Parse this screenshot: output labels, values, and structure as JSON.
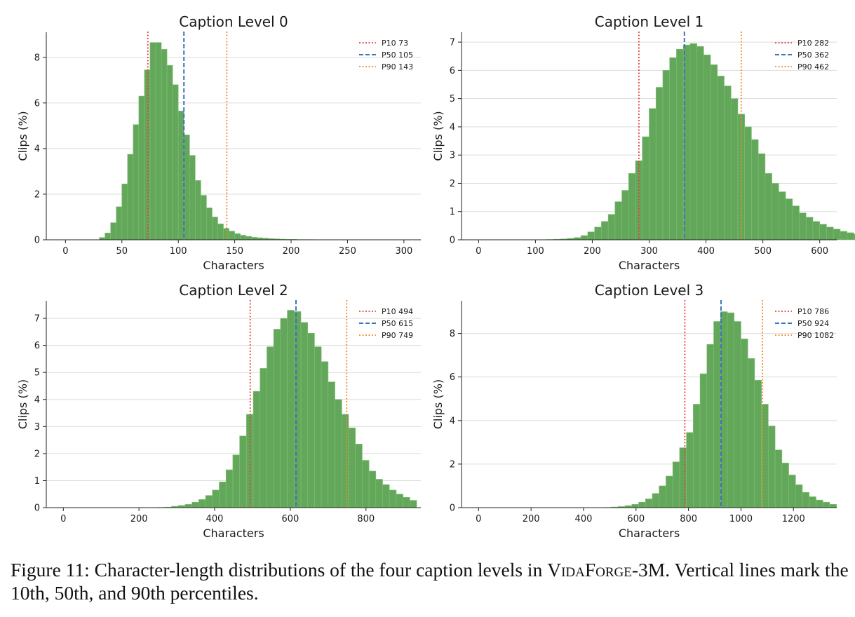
{
  "chart_data": [
    {
      "type": "bar",
      "title": "Caption Level 0",
      "xlabel": "Characters",
      "ylabel": "Clips (%)",
      "xlim": [
        -17,
        315
      ],
      "ylim": [
        0,
        9.1
      ],
      "xticks": [
        0,
        50,
        100,
        150,
        200,
        250,
        300
      ],
      "yticks": [
        0,
        2,
        4,
        6,
        8
      ],
      "bin_start": 30,
      "bin_width": 5,
      "values": [
        0.1,
        0.3,
        0.75,
        1.45,
        2.45,
        3.75,
        5.05,
        6.3,
        7.45,
        8.65,
        8.65,
        8.35,
        7.65,
        6.8,
        5.65,
        4.6,
        3.7,
        2.6,
        1.95,
        1.4,
        1.0,
        0.7,
        0.5,
        0.38,
        0.27,
        0.2,
        0.15,
        0.11,
        0.09,
        0.07,
        0.05,
        0.04,
        0.03,
        0.02,
        0.02,
        0.01,
        0.01,
        0.01
      ],
      "percentiles": [
        {
          "label": "P10 73",
          "value": 73,
          "color": "#e8413c",
          "style": "dotted"
        },
        {
          "label": "P50 105",
          "value": 105,
          "color": "#3f74b8",
          "style": "dashed"
        },
        {
          "label": "P90 143",
          "value": 143,
          "color": "#f08a24",
          "style": "dotted"
        }
      ],
      "bar_color": "#63a85a",
      "grid": "horizontal",
      "legend": "top-right"
    },
    {
      "type": "bar",
      "title": "Caption Level 1",
      "xlabel": "Characters",
      "ylabel": "Clips (%)",
      "xlim": [
        -30,
        630
      ],
      "ylim": [
        0,
        7.35
      ],
      "xticks": [
        0,
        100,
        200,
        300,
        400,
        500,
        600
      ],
      "yticks": [
        0,
        1,
        2,
        3,
        4,
        5,
        6,
        7
      ],
      "bin_start": 120,
      "bin_width": 12,
      "values": [
        0.01,
        0.02,
        0.03,
        0.05,
        0.08,
        0.15,
        0.28,
        0.45,
        0.65,
        0.9,
        1.35,
        1.75,
        2.35,
        2.8,
        3.65,
        4.65,
        5.4,
        6.0,
        6.45,
        6.75,
        6.9,
        6.95,
        6.85,
        6.55,
        6.2,
        5.8,
        5.45,
        5.0,
        4.45,
        4.0,
        3.55,
        3.05,
        2.35,
        2.0,
        1.7,
        1.45,
        1.2,
        0.95,
        0.8,
        0.65,
        0.55,
        0.45,
        0.38,
        0.3,
        0.25,
        0.2,
        0.17
      ],
      "percentiles": [
        {
          "label": "P10 282",
          "value": 282,
          "color": "#e8413c",
          "style": "dotted"
        },
        {
          "label": "P50 362",
          "value": 362,
          "color": "#3f74b8",
          "style": "dashed"
        },
        {
          "label": "P90 462",
          "value": 462,
          "color": "#f08a24",
          "style": "dotted"
        }
      ],
      "bar_color": "#63a85a",
      "grid": "horizontal",
      "legend": "top-right"
    },
    {
      "type": "bar",
      "title": "Caption Level 2",
      "xlabel": "Characters",
      "ylabel": "Clips (%)",
      "xlim": [
        -45,
        945
      ],
      "ylim": [
        0,
        7.65
      ],
      "xticks": [
        0,
        200,
        400,
        600,
        800
      ],
      "yticks": [
        0,
        1,
        2,
        3,
        4,
        5,
        6,
        7
      ],
      "bin_start": 250,
      "bin_width": 18,
      "values": [
        0.01,
        0.02,
        0.05,
        0.08,
        0.12,
        0.2,
        0.3,
        0.45,
        0.65,
        0.95,
        1.4,
        1.95,
        2.65,
        3.45,
        4.3,
        5.15,
        5.95,
        6.6,
        7.0,
        7.3,
        7.25,
        6.85,
        6.45,
        5.95,
        5.4,
        4.65,
        4.0,
        3.45,
        2.95,
        2.35,
        1.75,
        1.35,
        1.05,
        0.85,
        0.65,
        0.5,
        0.38,
        0.27
      ],
      "percentiles": [
        {
          "label": "P10 494",
          "value": 494,
          "color": "#e8413c",
          "style": "dotted"
        },
        {
          "label": "P50 615",
          "value": 615,
          "color": "#3f74b8",
          "style": "dashed"
        },
        {
          "label": "P90 749",
          "value": 749,
          "color": "#f08a24",
          "style": "dotted"
        }
      ],
      "bar_color": "#63a85a",
      "grid": "horizontal",
      "legend": "top-right"
    },
    {
      "type": "bar",
      "title": "Caption Level 3",
      "xlabel": "Characters",
      "ylabel": "Clips (%)",
      "xlim": [
        -65,
        1365
      ],
      "ylim": [
        0,
        9.5
      ],
      "xticks": [
        0,
        200,
        400,
        600,
        800,
        1000,
        1200
      ],
      "yticks": [
        0,
        2,
        4,
        6,
        8
      ],
      "bin_start": 480,
      "bin_width": 26,
      "values": [
        0.01,
        0.03,
        0.05,
        0.09,
        0.15,
        0.25,
        0.4,
        0.65,
        1.0,
        1.45,
        2.1,
        2.75,
        3.45,
        4.75,
        6.15,
        7.5,
        8.55,
        9.0,
        8.95,
        8.55,
        7.75,
        6.85,
        5.85,
        4.75,
        3.75,
        2.65,
        2.05,
        1.5,
        1.05,
        0.7,
        0.5,
        0.35,
        0.25,
        0.15
      ],
      "percentiles": [
        {
          "label": "P10 786",
          "value": 786,
          "color": "#e8413c",
          "style": "dotted"
        },
        {
          "label": "P50 924",
          "value": 924,
          "color": "#3f74b8",
          "style": "dashed"
        },
        {
          "label": "P90 1082",
          "value": 1082,
          "color": "#f08a24",
          "style": "dotted"
        }
      ],
      "bar_color": "#63a85a",
      "grid": "horizontal",
      "legend": "top-right"
    }
  ],
  "caption": {
    "prefix": "Figure 11: Character-length distributions of the four caption levels in ",
    "dataset": "VidaForge",
    "suffix": "-3M. Vertical lines mark the 10th, 50th, and 90th percentiles."
  }
}
